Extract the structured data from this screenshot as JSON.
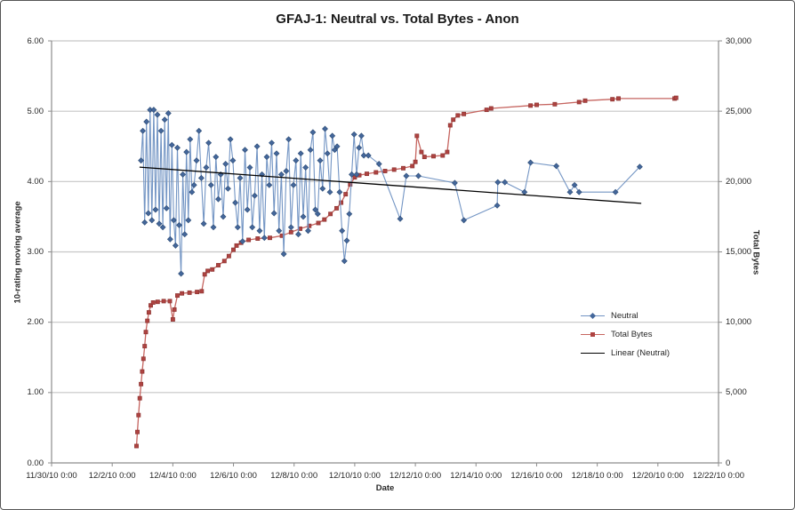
{
  "chart_data": {
    "type": "line",
    "title": "GFAJ-1: Neutral vs. Total Bytes - Anon",
    "xlabel": "Date",
    "ylabel_left": "10-rating moving average",
    "ylabel_right": "Total Bytes",
    "grid": "horizontal-on",
    "legend_position": "middle-right-inside",
    "x_axis": {
      "min_days": 0,
      "max_days": 22,
      "tick_step_days": 2,
      "tick_labels": [
        "11/30/10 0:00",
        "12/2/10 0:00",
        "12/4/10 0:00",
        "12/6/10 0:00",
        "12/8/10 0:00",
        "12/10/10 0:00",
        "12/12/10 0:00",
        "12/14/10 0:00",
        "12/16/10 0:00",
        "12/18/10 0:00",
        "12/20/10 0:00",
        "12/22/10 0:00"
      ]
    },
    "y_axis_left": {
      "min": 0,
      "max": 6,
      "tick_step": 1,
      "tick_labels": [
        "0.00",
        "1.00",
        "2.00",
        "3.00",
        "4.00",
        "5.00",
        "6.00"
      ]
    },
    "y_axis_right": {
      "min": 0,
      "max": 30000,
      "tick_step": 5000,
      "tick_labels": [
        "0",
        "5,000",
        "10,000",
        "15,000",
        "20,000",
        "25,000",
        "30,000"
      ]
    },
    "colors": {
      "neutral_line": "#7395C4",
      "neutral_marker": "#44679B",
      "neutral_marker_edge": "#31507A",
      "total_bytes_line": "#C66560",
      "total_bytes_marker": "#AE4341",
      "total_bytes_marker_edge": "#8E3532",
      "linear_line": "#000000",
      "gridline": "#C6C6C6",
      "axis_line": "#8C8C8C"
    },
    "legend": [
      {
        "label": "Neutral",
        "marker": "diamond",
        "color": "#7395C4",
        "marker_color": "#44679B"
      },
      {
        "label": "Total Bytes",
        "marker": "square",
        "color": "#C66560",
        "marker_color": "#AE4341"
      },
      {
        "label": "Linear (Neutral)",
        "marker": "none",
        "color": "#000000",
        "marker_color": "#000000"
      }
    ],
    "series": [
      {
        "name": "Neutral",
        "axis": "left",
        "marker": "diamond",
        "points": [
          [
            2.95,
            4.3
          ],
          [
            3.01,
            4.72
          ],
          [
            3.07,
            3.42
          ],
          [
            3.13,
            4.85
          ],
          [
            3.19,
            3.55
          ],
          [
            3.25,
            5.02
          ],
          [
            3.31,
            3.45
          ],
          [
            3.37,
            5.02
          ],
          [
            3.43,
            3.6
          ],
          [
            3.49,
            4.95
          ],
          [
            3.55,
            3.4
          ],
          [
            3.61,
            4.72
          ],
          [
            3.67,
            3.35
          ],
          [
            3.73,
            4.88
          ],
          [
            3.79,
            3.62
          ],
          [
            3.85,
            4.97
          ],
          [
            3.91,
            3.18
          ],
          [
            3.97,
            4.52
          ],
          [
            4.03,
            3.45
          ],
          [
            4.09,
            3.09
          ],
          [
            4.15,
            4.48
          ],
          [
            4.21,
            3.38
          ],
          [
            4.27,
            2.69
          ],
          [
            4.33,
            4.1
          ],
          [
            4.39,
            3.25
          ],
          [
            4.45,
            4.42
          ],
          [
            4.51,
            3.45
          ],
          [
            4.57,
            4.6
          ],
          [
            4.63,
            3.85
          ],
          [
            4.7,
            3.95
          ],
          [
            4.78,
            4.3
          ],
          [
            4.86,
            4.72
          ],
          [
            4.94,
            4.05
          ],
          [
            5.02,
            3.4
          ],
          [
            5.1,
            4.2
          ],
          [
            5.18,
            4.55
          ],
          [
            5.26,
            3.95
          ],
          [
            5.34,
            3.35
          ],
          [
            5.42,
            4.35
          ],
          [
            5.5,
            3.75
          ],
          [
            5.58,
            4.1
          ],
          [
            5.66,
            3.5
          ],
          [
            5.74,
            4.25
          ],
          [
            5.82,
            3.9
          ],
          [
            5.9,
            4.6
          ],
          [
            5.98,
            4.3
          ],
          [
            6.06,
            3.7
          ],
          [
            6.14,
            3.35
          ],
          [
            6.22,
            4.05
          ],
          [
            6.3,
            3.15
          ],
          [
            6.38,
            4.45
          ],
          [
            6.46,
            3.6
          ],
          [
            6.54,
            4.2
          ],
          [
            6.62,
            3.35
          ],
          [
            6.7,
            3.8
          ],
          [
            6.78,
            4.5
          ],
          [
            6.86,
            3.3
          ],
          [
            6.94,
            4.1
          ],
          [
            7.02,
            3.2
          ],
          [
            7.1,
            4.35
          ],
          [
            7.18,
            3.95
          ],
          [
            7.26,
            4.55
          ],
          [
            7.34,
            3.55
          ],
          [
            7.42,
            4.4
          ],
          [
            7.5,
            3.3
          ],
          [
            7.58,
            4.1
          ],
          [
            7.66,
            2.97
          ],
          [
            7.74,
            4.15
          ],
          [
            7.82,
            4.6
          ],
          [
            7.9,
            3.35
          ],
          [
            7.98,
            3.95
          ],
          [
            8.06,
            4.3
          ],
          [
            8.14,
            3.25
          ],
          [
            8.22,
            4.4
          ],
          [
            8.3,
            3.5
          ],
          [
            8.38,
            4.2
          ],
          [
            8.46,
            3.3
          ],
          [
            8.54,
            4.45
          ],
          [
            8.62,
            4.7
          ],
          [
            8.7,
            3.6
          ],
          [
            8.78,
            3.54
          ],
          [
            8.86,
            4.3
          ],
          [
            8.94,
            3.9
          ],
          [
            9.02,
            4.75
          ],
          [
            9.1,
            4.4
          ],
          [
            9.18,
            3.85
          ],
          [
            9.26,
            4.65
          ],
          [
            9.34,
            4.45
          ],
          [
            9.42,
            4.5
          ],
          [
            9.5,
            3.85
          ],
          [
            9.58,
            3.3
          ],
          [
            9.66,
            2.87
          ],
          [
            9.74,
            3.16
          ],
          [
            9.82,
            3.54
          ],
          [
            9.9,
            4.1
          ],
          [
            9.98,
            4.67
          ],
          [
            10.06,
            4.1
          ],
          [
            10.14,
            4.48
          ],
          [
            10.22,
            4.65
          ],
          [
            10.3,
            4.37
          ],
          [
            10.45,
            4.37
          ],
          [
            10.8,
            4.25
          ],
          [
            11.5,
            3.47
          ],
          [
            11.7,
            4.08
          ],
          [
            12.1,
            4.08
          ],
          [
            13.3,
            3.98
          ],
          [
            13.6,
            3.45
          ],
          [
            14.7,
            3.66
          ],
          [
            14.72,
            3.99
          ],
          [
            14.95,
            3.99
          ],
          [
            15.6,
            3.85
          ],
          [
            15.8,
            4.27
          ],
          [
            16.65,
            4.22
          ],
          [
            17.1,
            3.85
          ],
          [
            17.25,
            3.95
          ],
          [
            17.4,
            3.85
          ],
          [
            18.6,
            3.85
          ],
          [
            19.4,
            4.21
          ]
        ]
      },
      {
        "name": "Total Bytes",
        "axis": "right",
        "marker": "square",
        "points": [
          [
            2.8,
            1200
          ],
          [
            2.83,
            2200
          ],
          [
            2.87,
            3400
          ],
          [
            2.91,
            4600
          ],
          [
            2.95,
            5600
          ],
          [
            2.99,
            6500
          ],
          [
            3.03,
            7400
          ],
          [
            3.07,
            8300
          ],
          [
            3.11,
            9300
          ],
          [
            3.16,
            10100
          ],
          [
            3.21,
            10700
          ],
          [
            3.27,
            11200
          ],
          [
            3.35,
            11400
          ],
          [
            3.5,
            11450
          ],
          [
            3.7,
            11500
          ],
          [
            3.9,
            11500
          ],
          [
            4.0,
            10200
          ],
          [
            4.05,
            10900
          ],
          [
            4.15,
            11900
          ],
          [
            4.3,
            12050
          ],
          [
            4.55,
            12100
          ],
          [
            4.8,
            12150
          ],
          [
            4.95,
            12200
          ],
          [
            5.05,
            13400
          ],
          [
            5.15,
            13650
          ],
          [
            5.3,
            13750
          ],
          [
            5.5,
            14050
          ],
          [
            5.7,
            14350
          ],
          [
            5.85,
            14700
          ],
          [
            6.0,
            15150
          ],
          [
            6.1,
            15450
          ],
          [
            6.25,
            15650
          ],
          [
            6.5,
            15850
          ],
          [
            6.8,
            15950
          ],
          [
            7.2,
            16000
          ],
          [
            7.6,
            16150
          ],
          [
            7.9,
            16400
          ],
          [
            8.2,
            16650
          ],
          [
            8.5,
            16850
          ],
          [
            8.8,
            17050
          ],
          [
            9.0,
            17300
          ],
          [
            9.2,
            17700
          ],
          [
            9.4,
            18100
          ],
          [
            9.55,
            18500
          ],
          [
            9.7,
            19100
          ],
          [
            9.85,
            19800
          ],
          [
            10.0,
            20300
          ],
          [
            10.15,
            20450
          ],
          [
            10.4,
            20550
          ],
          [
            10.7,
            20650
          ],
          [
            11.0,
            20750
          ],
          [
            11.3,
            20850
          ],
          [
            11.6,
            20950
          ],
          [
            11.9,
            21100
          ],
          [
            12.0,
            21400
          ],
          [
            12.05,
            23250
          ],
          [
            12.2,
            22100
          ],
          [
            12.3,
            21750
          ],
          [
            12.6,
            21800
          ],
          [
            12.9,
            21850
          ],
          [
            13.05,
            22100
          ],
          [
            13.15,
            24000
          ],
          [
            13.25,
            24400
          ],
          [
            13.4,
            24700
          ],
          [
            13.6,
            24800
          ],
          [
            14.35,
            25100
          ],
          [
            14.5,
            25200
          ],
          [
            15.8,
            25400
          ],
          [
            16.0,
            25450
          ],
          [
            16.6,
            25500
          ],
          [
            17.4,
            25650
          ],
          [
            17.6,
            25750
          ],
          [
            18.5,
            25850
          ],
          [
            18.7,
            25900
          ],
          [
            20.55,
            25900
          ],
          [
            20.6,
            25950
          ]
        ]
      },
      {
        "name": "Linear (Neutral)",
        "axis": "left",
        "marker": "none",
        "points": [
          [
            2.9,
            4.205
          ],
          [
            19.45,
            3.69
          ]
        ]
      }
    ]
  }
}
